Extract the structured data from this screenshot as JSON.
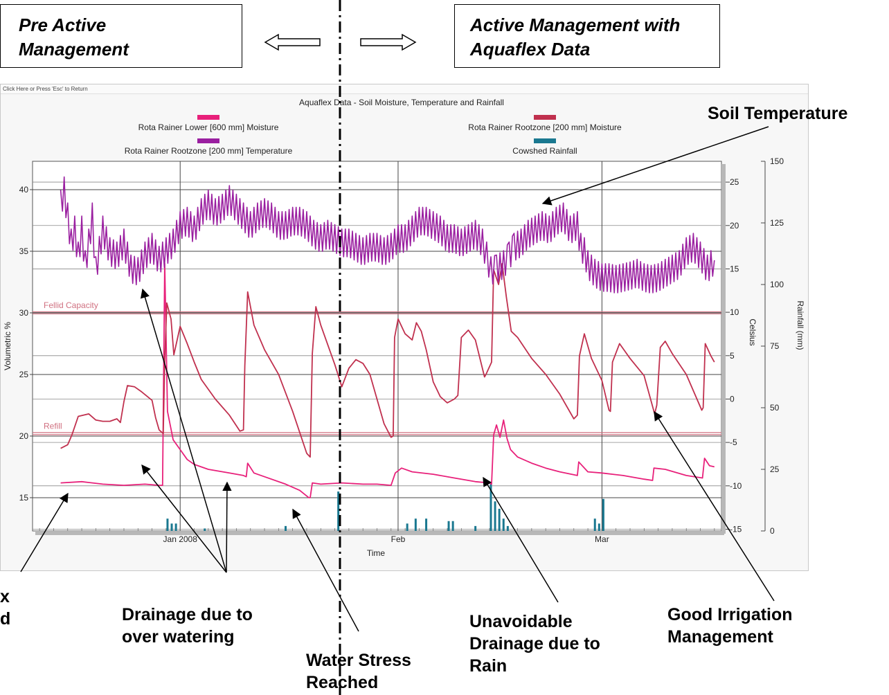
{
  "header": {
    "pre_label_1": "Pre Active",
    "pre_label_2": "Management",
    "active_label_1": "Active Management with",
    "active_label_2": "Aquaflex Data"
  },
  "window": {
    "titlebar": "Click Here or Press 'Esc' to Return"
  },
  "annotations": {
    "soil_temperature": "Soil Temperature",
    "drainage_1": "Drainage due to",
    "drainage_2": "over watering",
    "water_stress_1": "Water Stress",
    "water_stress_2": "Reached",
    "unavoidable_1": "Unavoidable",
    "unavoidable_2": "Drainage due to",
    "unavoidable_3": "Rain",
    "good_irrigation_1": "Good Irrigation",
    "good_irrigation_2": "Management",
    "cut_1": "x",
    "cut_2": "d"
  },
  "colors": {
    "lower_moisture": "#e8207a",
    "rootzone_moisture": "#c0304e",
    "temperature": "#9a1fa0",
    "rainfall": "#1a7890",
    "reference_lines": "#d07080"
  },
  "chart_data": {
    "type": "line",
    "title": "Aquaflex Data - Soil Moisture, Temperature and Rainfall",
    "xlabel": "Time",
    "ylabel": "Volumetric %",
    "y2label": "Celsius",
    "y3label": "Rainfall (mm)",
    "legend": [
      {
        "name": "Rota Rainer Lower  [600 mm] Moisture",
        "color": "#e8207a"
      },
      {
        "name": "Rota Rainer Rootzone  [200 mm] Moisture",
        "color": "#c0304e"
      },
      {
        "name": "Rota Rainer Rootzone  [200 mm] Temperature",
        "color": "#9a1fa0"
      },
      {
        "name": "Cowshed Rainfall",
        "color": "#1a7890"
      }
    ],
    "legend_placement": "top",
    "x_ticks": [
      "Jan 2008",
      "Feb",
      "Mar"
    ],
    "x_tick_days": [
      20,
      51,
      80
    ],
    "xlim": [
      -1,
      97
    ],
    "ylim": [
      12.3,
      42.3
    ],
    "y_ticks": [
      15,
      20,
      25,
      30,
      35,
      40
    ],
    "y2lim": [
      -15.2,
      27.4
    ],
    "y2_ticks": [
      -15,
      -10,
      -5,
      0,
      5,
      10,
      15,
      20,
      25
    ],
    "y3lim": [
      0,
      150
    ],
    "y3_ticks": [
      0,
      25,
      50,
      75,
      100,
      125,
      150
    ],
    "reference_lines": [
      {
        "label": "Fellid Capacity",
        "y": 30
      },
      {
        "label": "Refill",
        "y": 20.2
      }
    ],
    "series": [
      {
        "name": "Rota Rainer Lower  [600 mm] Moisture",
        "axis": "left",
        "points": [
          [
            3,
            16.2
          ],
          [
            6,
            16.3
          ],
          [
            9,
            16.1
          ],
          [
            12,
            16.0
          ],
          [
            15,
            16.1
          ],
          [
            17,
            16.0
          ],
          [
            17.5,
            16.0
          ],
          [
            17.8,
            34.0
          ],
          [
            18.2,
            22.0
          ],
          [
            19,
            19.7
          ],
          [
            20,
            18.9
          ],
          [
            21,
            18.1
          ],
          [
            22,
            17.7
          ],
          [
            24,
            17.3
          ],
          [
            27,
            17.0
          ],
          [
            29,
            16.8
          ],
          [
            29.4,
            16.7
          ],
          [
            29.6,
            17.8
          ],
          [
            30.5,
            17.0
          ],
          [
            32,
            16.7
          ],
          [
            35,
            16.1
          ],
          [
            37,
            15.6
          ],
          [
            38.3,
            15.0
          ],
          [
            38.5,
            15.0
          ],
          [
            38.8,
            16.2
          ],
          [
            40,
            16.1
          ],
          [
            43,
            16.2
          ],
          [
            46,
            16.1
          ],
          [
            48,
            16.1
          ],
          [
            50,
            16.0
          ],
          [
            50.6,
            17.0
          ],
          [
            51.5,
            17.4
          ],
          [
            53,
            17.1
          ],
          [
            56,
            16.9
          ],
          [
            59,
            16.6
          ],
          [
            62,
            16.3
          ],
          [
            64,
            16.2
          ],
          [
            64.3,
            16.1
          ],
          [
            64.6,
            20.1
          ],
          [
            65,
            20.9
          ],
          [
            65.5,
            19.9
          ],
          [
            66,
            21.3
          ],
          [
            66.5,
            19.8
          ],
          [
            67,
            18.9
          ],
          [
            68,
            18.3
          ],
          [
            70,
            17.8
          ],
          [
            72,
            17.4
          ],
          [
            74,
            17.1
          ],
          [
            76.5,
            16.8
          ],
          [
            76.7,
            17.9
          ],
          [
            78,
            17.1
          ],
          [
            80,
            17.0
          ],
          [
            83,
            16.8
          ],
          [
            86,
            16.5
          ],
          [
            87.2,
            16.4
          ],
          [
            87.4,
            17.4
          ],
          [
            89,
            17.3
          ],
          [
            92,
            16.8
          ],
          [
            94.3,
            16.6
          ],
          [
            94.6,
            18.2
          ],
          [
            95.3,
            17.6
          ],
          [
            96,
            17.5
          ]
        ]
      },
      {
        "name": "Rota Rainer Rootzone  [200 mm] Moisture",
        "axis": "left",
        "points": [
          [
            3,
            19.0
          ],
          [
            4,
            19.3
          ],
          [
            4.6,
            20.1
          ],
          [
            5.5,
            21.6
          ],
          [
            7,
            21.8
          ],
          [
            8,
            21.3
          ],
          [
            9,
            21.2
          ],
          [
            10,
            21.2
          ],
          [
            11,
            21.4
          ],
          [
            11.5,
            21.1
          ],
          [
            12,
            22.8
          ],
          [
            12.5,
            24.1
          ],
          [
            13.5,
            24.0
          ],
          [
            14.5,
            23.6
          ],
          [
            16,
            22.9
          ],
          [
            16.5,
            21.5
          ],
          [
            17,
            20.5
          ],
          [
            17.6,
            20.2
          ],
          [
            17.8,
            26.0
          ],
          [
            18.1,
            30.8
          ],
          [
            18.7,
            29.5
          ],
          [
            19.1,
            26.6
          ],
          [
            20,
            28.9
          ],
          [
            21,
            27.5
          ],
          [
            22,
            26.0
          ],
          [
            23,
            24.6
          ],
          [
            25,
            23.0
          ],
          [
            27,
            21.7
          ],
          [
            28.5,
            20.4
          ],
          [
            29,
            20.5
          ],
          [
            29.2,
            25.7
          ],
          [
            29.6,
            31.7
          ],
          [
            30.5,
            29.0
          ],
          [
            32,
            27.0
          ],
          [
            34,
            25.0
          ],
          [
            36,
            22.0
          ],
          [
            38,
            18.6
          ],
          [
            38.5,
            18.3
          ],
          [
            38.8,
            26.7
          ],
          [
            39.3,
            30.5
          ],
          [
            40,
            29.0
          ],
          [
            42,
            25.8
          ],
          [
            43,
            24.0
          ],
          [
            44,
            25.5
          ],
          [
            45,
            26.2
          ],
          [
            46,
            25.9
          ],
          [
            47,
            25.0
          ],
          [
            48,
            23.0
          ],
          [
            49,
            21.0
          ],
          [
            50,
            19.9
          ],
          [
            50.3,
            20.0
          ],
          [
            50.5,
            28.0
          ],
          [
            51,
            29.5
          ],
          [
            52,
            28.3
          ],
          [
            53,
            27.8
          ],
          [
            53.6,
            29.2
          ],
          [
            54.3,
            28.5
          ],
          [
            55,
            27.0
          ],
          [
            56,
            24.4
          ],
          [
            57,
            23.2
          ],
          [
            58,
            22.7
          ],
          [
            59,
            23.0
          ],
          [
            59.5,
            23.3
          ],
          [
            60,
            28.0
          ],
          [
            61,
            28.6
          ],
          [
            62,
            27.8
          ],
          [
            63.3,
            24.8
          ],
          [
            63.5,
            25.0
          ],
          [
            64.3,
            26.0
          ],
          [
            64.6,
            33.5
          ],
          [
            65.3,
            32.3
          ],
          [
            65.8,
            34.0
          ],
          [
            66.4,
            31.3
          ],
          [
            67.1,
            28.5
          ],
          [
            68,
            28.0
          ],
          [
            70,
            26.3
          ],
          [
            72,
            25.0
          ],
          [
            74,
            23.4
          ],
          [
            76,
            21.4
          ],
          [
            76.5,
            21.7
          ],
          [
            76.8,
            26.5
          ],
          [
            77.5,
            28.3
          ],
          [
            78.5,
            26.3
          ],
          [
            80,
            24.5
          ],
          [
            81,
            22.1
          ],
          [
            81.2,
            22.0
          ],
          [
            81.5,
            26.0
          ],
          [
            82.5,
            27.5
          ],
          [
            84,
            26.3
          ],
          [
            86,
            24.9
          ],
          [
            87.5,
            21.8
          ],
          [
            87.8,
            22.5
          ],
          [
            88.3,
            27.2
          ],
          [
            89,
            27.7
          ],
          [
            90,
            26.7
          ],
          [
            92,
            25.0
          ],
          [
            94.2,
            22.1
          ],
          [
            94.4,
            22.3
          ],
          [
            94.7,
            27.5
          ],
          [
            95.5,
            26.5
          ],
          [
            96,
            26.0
          ]
        ]
      },
      {
        "name": "Rota Rainer Rootzone  [200 mm] Temperature",
        "axis": "right",
        "points": [
          [
            3,
            22.5
          ],
          [
            3.5,
            24.0
          ],
          [
            4.5,
            18.0
          ],
          [
            5,
            19.5
          ],
          [
            5.5,
            16.5
          ],
          [
            6,
            19.5
          ],
          [
            6.5,
            15.5
          ],
          [
            7,
            18.0
          ],
          [
            7.5,
            21.0
          ],
          [
            8,
            14.8
          ],
          [
            9,
            19.5
          ],
          [
            10,
            17.0
          ],
          [
            11,
            16.5
          ],
          [
            12,
            18.0
          ],
          [
            13,
            15.0
          ],
          [
            14,
            14.7
          ],
          [
            15,
            16.5
          ],
          [
            16,
            17.5
          ],
          [
            17,
            16.0
          ],
          [
            18,
            17.0
          ],
          [
            19,
            18.0
          ],
          [
            20,
            20.0
          ],
          [
            21,
            20.5
          ],
          [
            22,
            19.5
          ],
          [
            23,
            21.5
          ],
          [
            24,
            22.5
          ],
          [
            25,
            21.5
          ],
          [
            26,
            22.0
          ],
          [
            27,
            23.0
          ],
          [
            28,
            22.0
          ],
          [
            29,
            21.0
          ],
          [
            30,
            20.0
          ],
          [
            31,
            21.0
          ],
          [
            32,
            21.5
          ],
          [
            33,
            21.0
          ],
          [
            34,
            20.0
          ],
          [
            35,
            20.0
          ],
          [
            36,
            20.5
          ],
          [
            37,
            20.5
          ],
          [
            38,
            20.0
          ],
          [
            39,
            19.0
          ],
          [
            40,
            18.5
          ],
          [
            41,
            19.0
          ],
          [
            42,
            18.5
          ],
          [
            43,
            18.0
          ],
          [
            44,
            18.0
          ],
          [
            45,
            17.5
          ],
          [
            46,
            17.0
          ],
          [
            47,
            17.5
          ],
          [
            48,
            17.5
          ],
          [
            49,
            17.0
          ],
          [
            50,
            17.5
          ],
          [
            51,
            18.5
          ],
          [
            52,
            18.5
          ],
          [
            53,
            19.5
          ],
          [
            54,
            20.5
          ],
          [
            55,
            20.5
          ],
          [
            56,
            20.0
          ],
          [
            57,
            19.5
          ],
          [
            58,
            18.5
          ],
          [
            59,
            18.5
          ],
          [
            60,
            18.0
          ],
          [
            61,
            18.5
          ],
          [
            62,
            19.0
          ],
          [
            63,
            18.0
          ],
          [
            63.6,
            16.5
          ],
          [
            64.2,
            14.8
          ],
          [
            65,
            15.0
          ],
          [
            66,
            15.5
          ],
          [
            66.8,
            16.5
          ],
          [
            67.5,
            17.5
          ],
          [
            68.5,
            18.0
          ],
          [
            69.5,
            19.0
          ],
          [
            70.5,
            19.5
          ],
          [
            71.5,
            20.0
          ],
          [
            72.5,
            19.5
          ],
          [
            73.5,
            20.5
          ],
          [
            74.5,
            21.0
          ],
          [
            75.5,
            19.5
          ],
          [
            76.5,
            20.0
          ],
          [
            77,
            17.5
          ],
          [
            77.5,
            17.0
          ],
          [
            78,
            15.5
          ],
          [
            79,
            14.5
          ],
          [
            80,
            14.0
          ],
          [
            81,
            14.0
          ],
          [
            82,
            13.8
          ],
          [
            83,
            14.0
          ],
          [
            84,
            14.2
          ],
          [
            85,
            14.5
          ],
          [
            86,
            14.0
          ],
          [
            87,
            13.8
          ],
          [
            88,
            14.0
          ],
          [
            89,
            14.5
          ],
          [
            90,
            15.0
          ],
          [
            91,
            15.5
          ],
          [
            92,
            17.0
          ],
          [
            93,
            17.5
          ],
          [
            94,
            16.5
          ],
          [
            95,
            15.0
          ],
          [
            96,
            16.0
          ]
        ]
      },
      {
        "name": "Cowshed Rainfall",
        "axis": "rainfall",
        "bars": [
          [
            18.2,
            5
          ],
          [
            18.8,
            3
          ],
          [
            19.4,
            3
          ],
          [
            23.5,
            1
          ],
          [
            35,
            2
          ],
          [
            42.5,
            16
          ],
          [
            52.3,
            3
          ],
          [
            53.5,
            5
          ],
          [
            55,
            5
          ],
          [
            58.2,
            4
          ],
          [
            58.8,
            4
          ],
          [
            62,
            2
          ],
          [
            64.2,
            19
          ],
          [
            64.8,
            12
          ],
          [
            65.4,
            9
          ],
          [
            66,
            5
          ],
          [
            66.6,
            2
          ],
          [
            79,
            5
          ],
          [
            79.6,
            3
          ],
          [
            80.2,
            13
          ]
        ]
      }
    ],
    "grid": true
  }
}
